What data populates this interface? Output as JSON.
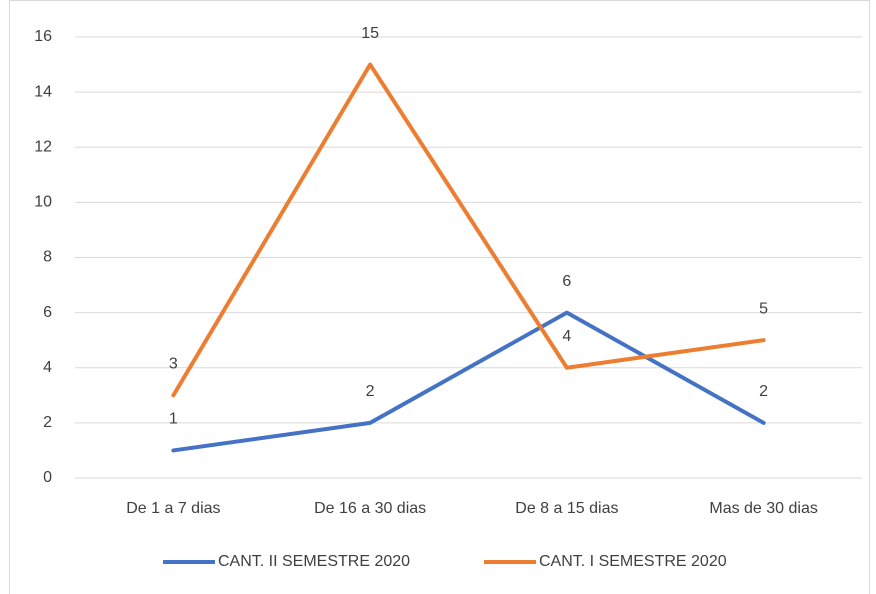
{
  "chart_data": {
    "type": "line",
    "categories": [
      "De 1 a 7 dias",
      "De 16 a 30 dias",
      "De 8 a 15 dias",
      "Mas de 30 dias"
    ],
    "series": [
      {
        "name": "CANT. II SEMESTRE 2020",
        "color": "#4472c4",
        "values": [
          1,
          2,
          6,
          2
        ]
      },
      {
        "name": "CANT. I SEMESTRE 2020",
        "color": "#ed7d31",
        "values": [
          3,
          15,
          4,
          5
        ]
      }
    ],
    "ylim": [
      0,
      16
    ],
    "yticks": [
      0,
      2,
      4,
      6,
      8,
      10,
      12,
      14,
      16
    ],
    "grid": true,
    "legend": "bottom"
  }
}
